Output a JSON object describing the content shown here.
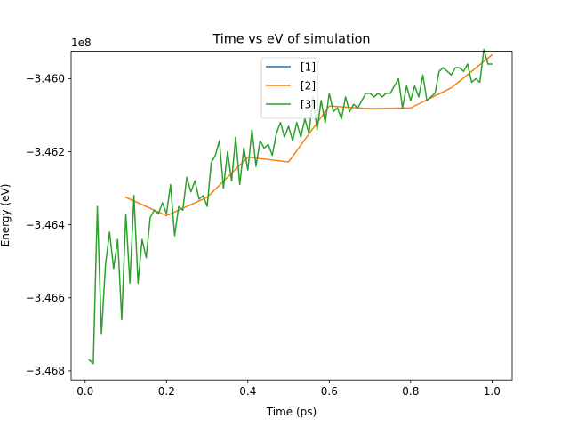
{
  "chart_data": {
    "type": "line",
    "title": "Time vs eV of simulation",
    "xlabel": "Time (ps)",
    "ylabel": "Energy (eV)",
    "offset_label": "1e8",
    "xlim": [
      -0.0345,
      1.0495
    ],
    "ylim": [
      -3.46825,
      -3.45925
    ],
    "xticks": [
      0.0,
      0.2,
      0.4,
      0.6,
      0.8,
      1.0
    ],
    "xtick_labels": [
      "0.0",
      "0.2",
      "0.4",
      "0.6",
      "0.8",
      "1.0"
    ],
    "yticks": [
      -3.468,
      -3.466,
      -3.464,
      -3.462,
      -3.46
    ],
    "ytick_labels": [
      "−3.468",
      "−3.466",
      "−3.464",
      "−3.462",
      "−3.460"
    ],
    "legend_position": "upper center",
    "series": [
      {
        "name": "[1]",
        "color": "#1f77b4",
        "x": [],
        "y": []
      },
      {
        "name": "[2]",
        "color": "#ff7f0e",
        "x": [
          0.1,
          0.2,
          0.3,
          0.4,
          0.5,
          0.6,
          0.7,
          0.8,
          0.9,
          1.0
        ],
        "y": [
          -3.46325,
          -3.46375,
          -3.46325,
          -3.46215,
          -3.46228,
          -3.46075,
          -3.46082,
          -3.4608,
          -3.46025,
          -3.45935
        ]
      },
      {
        "name": "[3]",
        "color": "#2ca02c",
        "x": [
          0.01,
          0.02,
          0.03,
          0.04,
          0.05,
          0.06,
          0.07,
          0.08,
          0.09,
          0.1,
          0.11,
          0.12,
          0.13,
          0.14,
          0.15,
          0.16,
          0.17,
          0.18,
          0.19,
          0.2,
          0.21,
          0.22,
          0.23,
          0.24,
          0.25,
          0.26,
          0.27,
          0.28,
          0.29,
          0.3,
          0.31,
          0.32,
          0.33,
          0.34,
          0.35,
          0.36,
          0.37,
          0.38,
          0.39,
          0.4,
          0.41,
          0.42,
          0.43,
          0.44,
          0.45,
          0.46,
          0.47,
          0.48,
          0.49,
          0.5,
          0.51,
          0.52,
          0.53,
          0.54,
          0.55,
          0.56,
          0.57,
          0.58,
          0.59,
          0.6,
          0.61,
          0.62,
          0.63,
          0.64,
          0.65,
          0.66,
          0.67,
          0.68,
          0.69,
          0.7,
          0.71,
          0.72,
          0.73,
          0.74,
          0.75,
          0.76,
          0.77,
          0.78,
          0.79,
          0.8,
          0.81,
          0.82,
          0.83,
          0.84,
          0.85,
          0.86,
          0.87,
          0.88,
          0.89,
          0.9,
          0.91,
          0.92,
          0.93,
          0.94,
          0.95,
          0.96,
          0.97,
          0.98,
          0.99,
          1.0
        ],
        "y": [
          -3.4677,
          -3.4678,
          -3.4635,
          -3.467,
          -3.4651,
          -3.4642,
          -3.4652,
          -3.4644,
          -3.4666,
          -3.4637,
          -3.4656,
          -3.4632,
          -3.4656,
          -3.4644,
          -3.4649,
          -3.4638,
          -3.4636,
          -3.4637,
          -3.4634,
          -3.4637,
          -3.4629,
          -3.4643,
          -3.4635,
          -3.4636,
          -3.4627,
          -3.4631,
          -3.4628,
          -3.4633,
          -3.4632,
          -3.4635,
          -3.4623,
          -3.4621,
          -3.4617,
          -3.463,
          -3.462,
          -3.4628,
          -3.4616,
          -3.4629,
          -3.4619,
          -3.4625,
          -3.4614,
          -3.4624,
          -3.4617,
          -3.4619,
          -3.4618,
          -3.4621,
          -3.4615,
          -3.4612,
          -3.4616,
          -3.4613,
          -3.4617,
          -3.4612,
          -3.4616,
          -3.4611,
          -3.4615,
          -3.4605,
          -3.4614,
          -3.4606,
          -3.4612,
          -3.4604,
          -3.4609,
          -3.4608,
          -3.4611,
          -3.4605,
          -3.4609,
          -3.4607,
          -3.4608,
          -3.4606,
          -3.4604,
          -3.4604,
          -3.4605,
          -3.4604,
          -3.4605,
          -3.4604,
          -3.4604,
          -3.4602,
          -3.46,
          -3.4608,
          -3.4602,
          -3.4606,
          -3.4602,
          -3.4605,
          -3.4599,
          -3.4606,
          -3.4605,
          -3.4604,
          -3.4598,
          -3.4597,
          -3.4598,
          -3.4599,
          -3.4597,
          -3.4597,
          -3.4598,
          -3.4596,
          -3.4601,
          -3.46,
          -3.4601,
          -3.4592,
          -3.4596,
          -3.4596
        ]
      }
    ]
  }
}
